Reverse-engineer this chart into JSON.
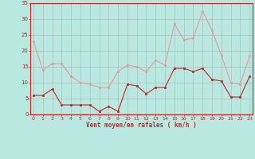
{
  "x": [
    0,
    1,
    2,
    3,
    4,
    5,
    6,
    7,
    8,
    9,
    10,
    11,
    12,
    13,
    14,
    15,
    16,
    17,
    18,
    19,
    20,
    21,
    22,
    23
  ],
  "wind_avg": [
    6,
    6,
    8,
    3,
    3,
    3,
    3,
    1,
    2.5,
    1,
    9.5,
    9,
    6.5,
    8.5,
    8.5,
    14.5,
    14.5,
    13.5,
    14.5,
    11,
    10.5,
    5.5,
    5.5,
    12
  ],
  "wind_gust": [
    23,
    14,
    16,
    16,
    12,
    10,
    9.5,
    8.5,
    8.5,
    13.5,
    15.5,
    15,
    13.5,
    17,
    15.5,
    28.5,
    23.5,
    24,
    32.5,
    26.5,
    18.5,
    10,
    9.5,
    18.5
  ],
  "bg_color": "#b8e8e0",
  "grid_color": "#999999",
  "avg_color": "#cc2222",
  "gust_color": "#ee9999",
  "xlabel": "Vent moyen/en rafales ( km/h )",
  "ylim": [
    0,
    35
  ],
  "yticks": [
    0,
    5,
    10,
    15,
    20,
    25,
    30,
    35
  ],
  "xticks": [
    0,
    1,
    2,
    3,
    4,
    5,
    6,
    7,
    8,
    9,
    10,
    11,
    12,
    13,
    14,
    15,
    16,
    17,
    18,
    19,
    20,
    21,
    22,
    23
  ]
}
